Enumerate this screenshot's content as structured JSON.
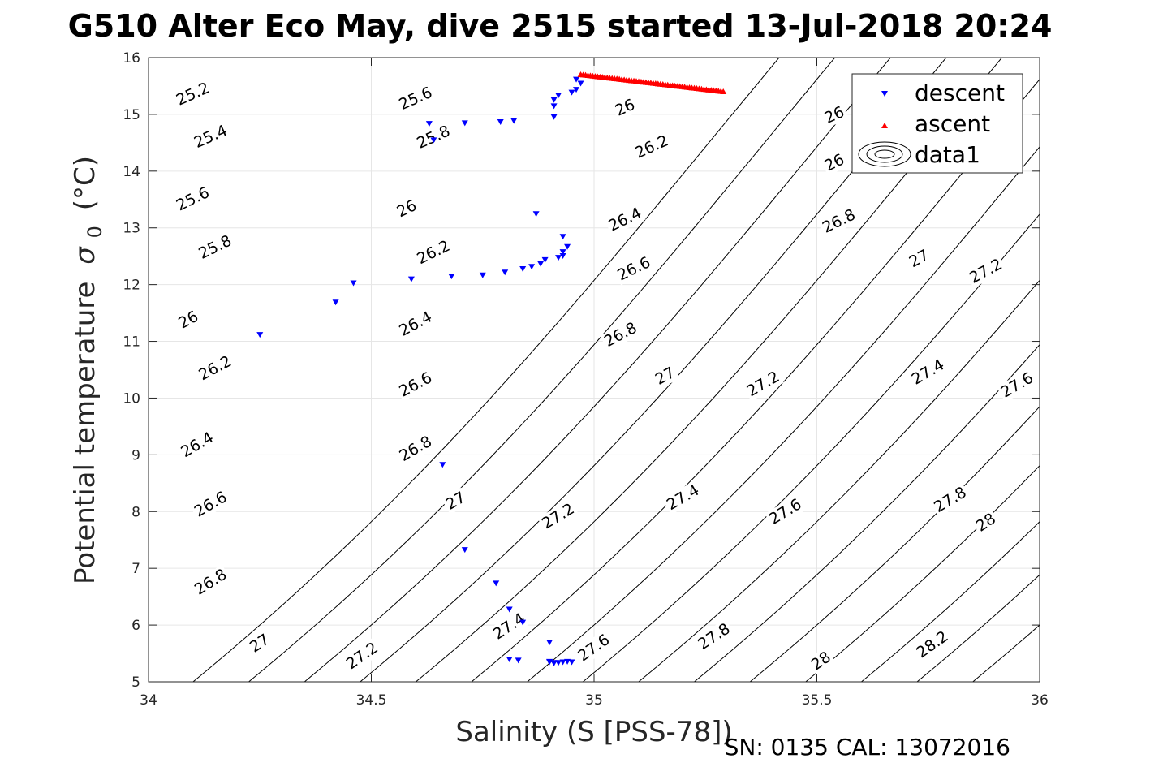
{
  "chart_data": {
    "type": "scatter",
    "title": "G510 Alter Eco May, dive 2515 started 13-Jul-2018 20:24",
    "xlabel": "Salinity (S [PSS-78])",
    "ylabel_main": "Potential temperature",
    "ylabel_symbol": "σ",
    "ylabel_subscript": "0",
    "ylabel_unit": "(°C)",
    "footer": "SN: 0135  CAL: 13072016",
    "xlim": [
      34,
      36
    ],
    "ylim": [
      5,
      16
    ],
    "xticks": [
      34,
      34.5,
      35,
      35.5,
      36
    ],
    "xtick_labels": [
      "34",
      "34.5",
      "35",
      "35.5",
      "36"
    ],
    "yticks": [
      5,
      6,
      7,
      8,
      9,
      10,
      11,
      12,
      13,
      14,
      15,
      16
    ],
    "ytick_labels": [
      "5",
      "6",
      "7",
      "8",
      "9",
      "10",
      "11",
      "12",
      "13",
      "14",
      "15",
      "16"
    ],
    "grid": true,
    "legend_position": "top-right",
    "colors": {
      "descent": "#0000ff",
      "ascent": "#ff0000",
      "contour": "#000000",
      "grid": "#e6e6e6",
      "axis": "#262626"
    },
    "series": [
      {
        "name": "descent",
        "marker": "triangle-down",
        "color": "#0000ff",
        "x": [
          34.25,
          34.42,
          34.46,
          34.59,
          34.63,
          34.64,
          34.68,
          34.71,
          34.75,
          34.79,
          34.8,
          34.81,
          34.82,
          34.84,
          34.84,
          34.86,
          34.87,
          34.88,
          34.89,
          34.9,
          34.9,
          34.91,
          34.91,
          34.91,
          34.92,
          34.92,
          34.93,
          34.93,
          34.93,
          34.94,
          34.95,
          34.96,
          34.97,
          34.66,
          34.71,
          34.78,
          34.81,
          34.83,
          34.9,
          34.91,
          34.91,
          34.92,
          34.93,
          34.94,
          34.95,
          34.96
        ],
        "y": [
          11.12,
          11.69,
          12.03,
          12.1,
          14.84,
          14.55,
          12.15,
          14.85,
          12.17,
          14.87,
          12.22,
          6.28,
          14.89,
          6.05,
          12.28,
          12.32,
          13.25,
          12.37,
          12.44,
          5.7,
          5.35,
          15.26,
          15.15,
          14.96,
          12.48,
          15.34,
          12.51,
          12.85,
          12.58,
          12.67,
          15.39,
          15.44,
          15.55,
          8.83,
          7.33,
          6.74,
          5.4,
          5.38,
          5.36,
          5.34,
          5.33,
          5.34,
          5.35,
          5.36,
          5.35,
          15.62
        ]
      },
      {
        "name": "ascent",
        "marker": "triangle-up",
        "color": "#ff0000",
        "x_range": [
          34.97,
          35.29
        ],
        "y_range": [
          15.7,
          15.4
        ],
        "count": 60
      },
      {
        "name": "data1",
        "type": "contour"
      }
    ],
    "contour_labels": [
      {
        "text": "25.2",
        "x": 34.1,
        "y": 15.35,
        "angle": -24
      },
      {
        "text": "25.4",
        "x": 34.14,
        "y": 14.6,
        "angle": -24
      },
      {
        "text": "25.6",
        "x": 34.1,
        "y": 13.5,
        "angle": -26
      },
      {
        "text": "25.8",
        "x": 34.15,
        "y": 12.65,
        "angle": -26
      },
      {
        "text": "26",
        "x": 34.09,
        "y": 11.37,
        "angle": -28
      },
      {
        "text": "26.2",
        "x": 34.15,
        "y": 10.52,
        "angle": -28
      },
      {
        "text": "26.4",
        "x": 34.11,
        "y": 9.17,
        "angle": -30
      },
      {
        "text": "26.6",
        "x": 34.14,
        "y": 8.12,
        "angle": -30
      },
      {
        "text": "26.8",
        "x": 34.14,
        "y": 6.75,
        "angle": -32
      },
      {
        "text": "27",
        "x": 34.25,
        "y": 5.67,
        "angle": -33
      },
      {
        "text": "27.2",
        "x": 34.48,
        "y": 5.45,
        "angle": -35
      },
      {
        "text": "25.6",
        "x": 34.6,
        "y": 15.27,
        "angle": -24
      },
      {
        "text": "25.8",
        "x": 34.64,
        "y": 14.59,
        "angle": -24
      },
      {
        "text": "26",
        "x": 34.58,
        "y": 13.33,
        "angle": -26
      },
      {
        "text": "26.2",
        "x": 34.64,
        "y": 12.56,
        "angle": -26
      },
      {
        "text": "26.4",
        "x": 34.6,
        "y": 11.3,
        "angle": -28
      },
      {
        "text": "26.6",
        "x": 34.6,
        "y": 10.23,
        "angle": -28
      },
      {
        "text": "26.8",
        "x": 34.6,
        "y": 9.1,
        "angle": -30
      },
      {
        "text": "27",
        "x": 34.69,
        "y": 8.18,
        "angle": -30
      },
      {
        "text": "27.2",
        "x": 34.92,
        "y": 7.91,
        "angle": -31
      },
      {
        "text": "27.4",
        "x": 34.81,
        "y": 5.97,
        "angle": -33
      },
      {
        "text": "27.6",
        "x": 35.0,
        "y": 5.59,
        "angle": -35
      },
      {
        "text": "26",
        "x": 35.07,
        "y": 15.11,
        "angle": -24
      },
      {
        "text": "26.2",
        "x": 35.13,
        "y": 14.42,
        "angle": -24
      },
      {
        "text": "26.4",
        "x": 35.07,
        "y": 13.14,
        "angle": -26
      },
      {
        "text": "26.6",
        "x": 35.09,
        "y": 12.27,
        "angle": -26
      },
      {
        "text": "26.8",
        "x": 35.06,
        "y": 11.11,
        "angle": -28
      },
      {
        "text": "27",
        "x": 35.16,
        "y": 10.38,
        "angle": -28
      },
      {
        "text": "27.2",
        "x": 35.38,
        "y": 10.24,
        "angle": -30
      },
      {
        "text": "27.4",
        "x": 35.2,
        "y": 8.24,
        "angle": -30
      },
      {
        "text": "27.6",
        "x": 35.43,
        "y": 7.99,
        "angle": -31
      },
      {
        "text": "27.8",
        "x": 35.27,
        "y": 5.79,
        "angle": -33
      },
      {
        "text": "28",
        "x": 35.51,
        "y": 5.36,
        "angle": -35
      },
      {
        "text": "26",
        "x": 35.54,
        "y": 14.98,
        "angle": -24
      },
      {
        "text": "26",
        "x": 35.54,
        "y": 14.14,
        "angle": -26
      },
      {
        "text": "26.8",
        "x": 35.55,
        "y": 13.11,
        "angle": -26
      },
      {
        "text": "27",
        "x": 35.73,
        "y": 12.45,
        "angle": -28
      },
      {
        "text": "27.2",
        "x": 35.88,
        "y": 12.23,
        "angle": -28
      },
      {
        "text": "27.4",
        "x": 35.75,
        "y": 10.45,
        "angle": -30
      },
      {
        "text": "27.6",
        "x": 35.95,
        "y": 10.22,
        "angle": -30
      },
      {
        "text": "27.8",
        "x": 35.8,
        "y": 8.2,
        "angle": -31
      },
      {
        "text": "28",
        "x": 35.88,
        "y": 7.8,
        "angle": -33
      },
      {
        "text": "28.2",
        "x": 35.76,
        "y": 5.65,
        "angle": -35
      }
    ]
  }
}
